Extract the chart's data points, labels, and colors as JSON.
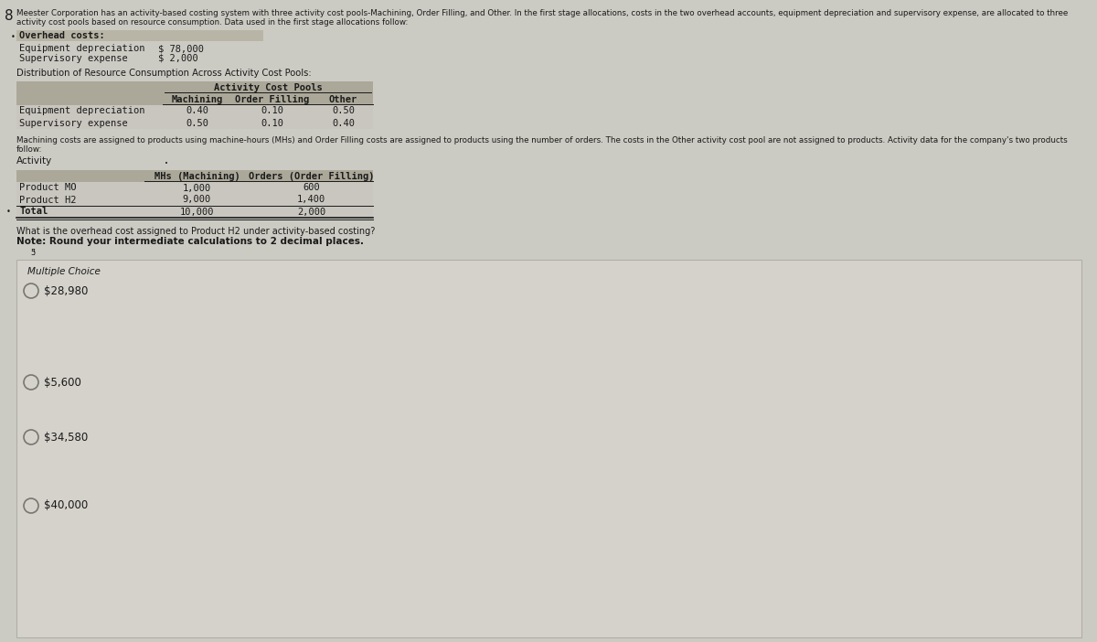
{
  "page_number": "8",
  "background_color": "#cccbc3",
  "header_line1": "Meester Corporation has an activity-based costing system with three activity cost pools-Machining, Order Filling, and Other. In the first stage allocations, costs in the two overhead accounts, equipment depreciation and supervisory expense, are allocated to three",
  "header_line2": "activity cost pools based on resource consumption. Data used in the first stage allocations follow:",
  "overhead_title": "Overhead costs:",
  "overhead_items": [
    [
      "Equipment depreciation",
      "$ 78,000"
    ],
    [
      "Supervisory expense",
      "$ 2,000"
    ]
  ],
  "dist_title": "Distribution of Resource Consumption Across Activity Cost Pools:",
  "dist_col_header": "Activity Cost Pools",
  "dist_cols": [
    "Machining",
    "Order Filling",
    "Other"
  ],
  "dist_rows": [
    [
      "Equipment depreciation",
      "0.40",
      "0.10",
      "0.50"
    ],
    [
      "Supervisory expense",
      "0.50",
      "0.10",
      "0.40"
    ]
  ],
  "middle_line1": "Machining costs are assigned to products using machine-hours (MHs) and Order Filling costs are assigned to products using the number of orders. The costs in the Other activity cost pool are not assigned to products. Activity data for the company's two products",
  "middle_line2": "follow:",
  "activity_label": "Activity",
  "activity_cols": [
    "MHs (Machining)",
    "Orders (Order Filling)"
  ],
  "activity_rows": [
    [
      "Product MO",
      "1,000",
      "600"
    ],
    [
      "Product H2",
      "9,000",
      "1,400"
    ],
    [
      "Total",
      "10,000",
      "2,000"
    ]
  ],
  "question_line1": "What is the overhead cost assigned to Product H2 under activity-based costing?",
  "question_line2": "Note: Round your intermediate calculations to 2 decimal places.",
  "multiple_choice_label": "Multiple Choice",
  "choices": [
    "$28,980",
    "$5,600",
    "$34,580",
    "$40,000"
  ],
  "overhead_box_bg": "#b8b5a6",
  "table_header_bg": "#aba89a",
  "table_data_bg": "#c8c6be",
  "mc_box_bg": "#d4d2ca",
  "mc_box_border": "#b0aea6",
  "text_color": "#1a1a1a",
  "line_color": "#888880"
}
